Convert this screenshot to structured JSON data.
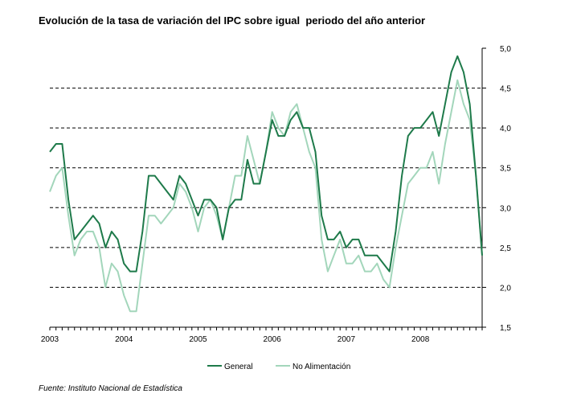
{
  "title": "Evolución de la tasa de variación del IPC sobre igual  periodo del año anterior",
  "source": "Fuente: Instituto Nacional de Estadística",
  "chart_data": {
    "type": "line",
    "title": "Evolución de la tasa de variación del IPC sobre igual  periodo del año anterior",
    "ylim": [
      1.5,
      5.0
    ],
    "y_ticks": [
      "1,5",
      "2,0",
      "2,5",
      "3,0",
      "3,5",
      "4,0",
      "4,5",
      "5,0"
    ],
    "y_tick_values": [
      1.5,
      2.0,
      2.5,
      3.0,
      3.5,
      4.0,
      4.5,
      5.0
    ],
    "x_ticks": [
      "2003",
      "2004",
      "2005",
      "2006",
      "2007",
      "2008"
    ],
    "grid": "horizontal dashed",
    "legend_position": "bottom",
    "x": [
      "2003-01",
      "2003-02",
      "2003-03",
      "2003-04",
      "2003-05",
      "2003-06",
      "2003-07",
      "2003-08",
      "2003-09",
      "2003-10",
      "2003-11",
      "2003-12",
      "2004-01",
      "2004-02",
      "2004-03",
      "2004-04",
      "2004-05",
      "2004-06",
      "2004-07",
      "2004-08",
      "2004-09",
      "2004-10",
      "2004-11",
      "2004-12",
      "2005-01",
      "2005-02",
      "2005-03",
      "2005-04",
      "2005-05",
      "2005-06",
      "2005-07",
      "2005-08",
      "2005-09",
      "2005-10",
      "2005-11",
      "2005-12",
      "2006-01",
      "2006-02",
      "2006-03",
      "2006-04",
      "2006-05",
      "2006-06",
      "2006-07",
      "2006-08",
      "2006-09",
      "2006-10",
      "2006-11",
      "2006-12",
      "2007-01",
      "2007-02",
      "2007-03",
      "2007-04",
      "2007-05",
      "2007-06",
      "2007-07",
      "2007-08",
      "2007-09",
      "2007-10",
      "2007-11",
      "2007-12",
      "2008-01",
      "2008-02",
      "2008-03",
      "2008-04",
      "2008-05",
      "2008-06",
      "2008-07",
      "2008-08",
      "2008-09",
      "2008-10",
      "2008-11"
    ],
    "series": [
      {
        "name": "General",
        "color": "#1e7a4a",
        "values": [
          3.7,
          3.8,
          3.8,
          3.1,
          2.6,
          2.7,
          2.8,
          2.9,
          2.8,
          2.5,
          2.7,
          2.6,
          2.3,
          2.2,
          2.2,
          2.7,
          3.4,
          3.4,
          3.3,
          3.2,
          3.1,
          3.4,
          3.3,
          3.1,
          2.9,
          3.1,
          3.1,
          3.0,
          2.6,
          3.0,
          3.1,
          3.1,
          3.6,
          3.3,
          3.3,
          3.7,
          4.1,
          3.9,
          3.9,
          4.1,
          4.2,
          4.0,
          4.0,
          3.7,
          2.9,
          2.6,
          2.6,
          2.7,
          2.5,
          2.6,
          2.6,
          2.4,
          2.4,
          2.4,
          2.3,
          2.2,
          2.7,
          3.4,
          3.9,
          4.0,
          4.0,
          4.1,
          4.2,
          3.9,
          4.3,
          4.7,
          4.9,
          4.7,
          4.3,
          3.4,
          2.4
        ]
      },
      {
        "name": "No Alimentación",
        "color": "#a3d6bb",
        "values": [
          3.2,
          3.4,
          3.5,
          2.9,
          2.4,
          2.6,
          2.7,
          2.7,
          2.5,
          2.0,
          2.3,
          2.2,
          1.9,
          1.7,
          1.7,
          2.3,
          2.9,
          2.9,
          2.8,
          2.9,
          3.0,
          3.3,
          3.2,
          3.0,
          2.7,
          3.0,
          3.1,
          2.9,
          2.6,
          3.0,
          3.4,
          3.4,
          3.9,
          3.6,
          3.3,
          3.7,
          4.2,
          4.0,
          3.9,
          4.2,
          4.3,
          4.0,
          3.7,
          3.5,
          2.6,
          2.2,
          2.4,
          2.6,
          2.3,
          2.3,
          2.4,
          2.2,
          2.2,
          2.3,
          2.1,
          2.0,
          2.5,
          2.9,
          3.3,
          3.4,
          3.5,
          3.5,
          3.7,
          3.3,
          3.8,
          4.2,
          4.6,
          4.3,
          4.1,
          3.4,
          2.4
        ]
      }
    ]
  }
}
